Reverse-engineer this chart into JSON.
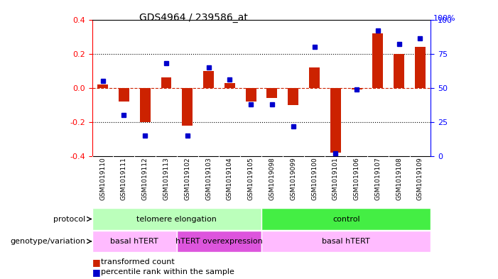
{
  "title": "GDS4964 / 239586_at",
  "samples": [
    "GSM1019110",
    "GSM1019111",
    "GSM1019112",
    "GSM1019113",
    "GSM1019102",
    "GSM1019103",
    "GSM1019104",
    "GSM1019105",
    "GSM1019098",
    "GSM1019099",
    "GSM1019100",
    "GSM1019101",
    "GSM1019106",
    "GSM1019107",
    "GSM1019108",
    "GSM1019109"
  ],
  "red_values": [
    0.02,
    -0.08,
    -0.2,
    0.06,
    -0.22,
    0.1,
    0.03,
    -0.08,
    -0.06,
    -0.1,
    0.12,
    -0.38,
    -0.01,
    0.32,
    0.2,
    0.24
  ],
  "blue_values": [
    55,
    30,
    15,
    68,
    15,
    65,
    56,
    38,
    38,
    22,
    80,
    2,
    49,
    92,
    82,
    86
  ],
  "ylim_left": [
    -0.4,
    0.4
  ],
  "ylim_right": [
    0,
    100
  ],
  "yticks_left": [
    -0.4,
    -0.2,
    0.0,
    0.2,
    0.4
  ],
  "yticks_right": [
    0,
    25,
    50,
    75,
    100
  ],
  "bar_color": "#cc2200",
  "dot_color": "#0000cc",
  "zero_line_color": "#cc2200",
  "grid_color": "#000000",
  "protocol_groups": [
    {
      "label": "telomere elongation",
      "start": 0,
      "end": 8,
      "color": "#bbffbb"
    },
    {
      "label": "control",
      "start": 8,
      "end": 16,
      "color": "#44ee44"
    }
  ],
  "genotype_groups": [
    {
      "label": "basal hTERT",
      "start": 0,
      "end": 4,
      "color": "#ffbbff"
    },
    {
      "label": "hTERT overexpression",
      "start": 4,
      "end": 8,
      "color": "#dd55dd"
    },
    {
      "label": "basal hTERT",
      "start": 8,
      "end": 16,
      "color": "#ffbbff"
    }
  ],
  "legend_red": "transformed count",
  "legend_blue": "percentile rank within the sample",
  "protocol_label": "protocol",
  "genotype_label": "genotype/variation",
  "bg_color": "#ffffff",
  "sample_bg_color": "#cccccc"
}
